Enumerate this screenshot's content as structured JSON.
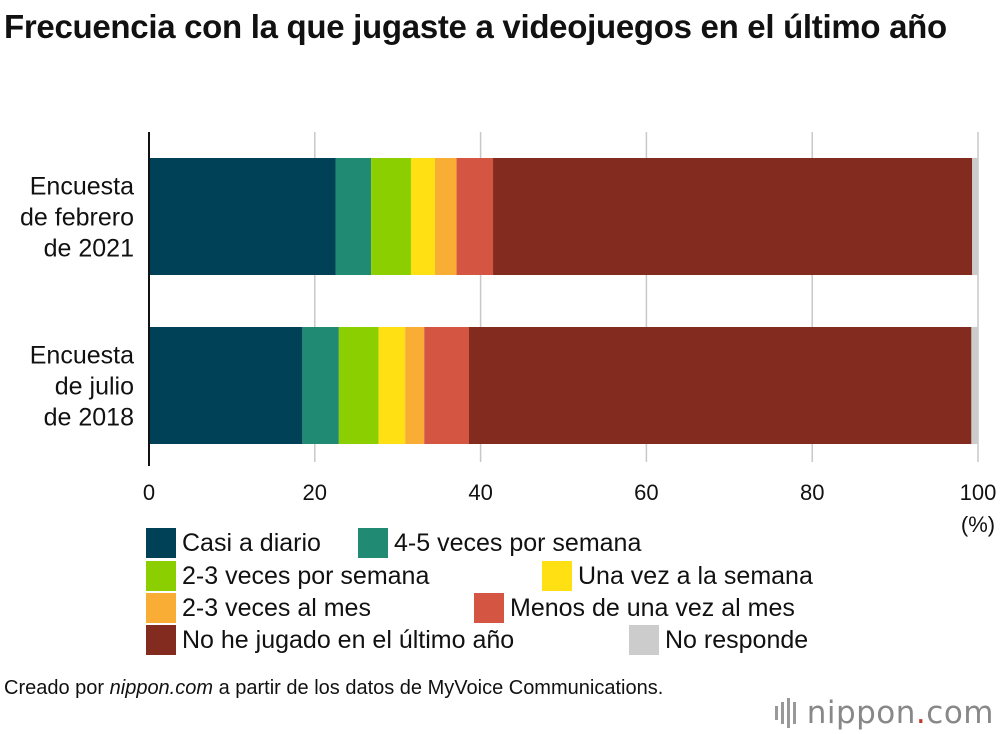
{
  "title": "Frecuencia con la que jugaste a videojuegos en el último año",
  "footer": {
    "prefix": "Creado por ",
    "site": "nippon.com",
    "suffix": " a partir de los datos de MyVoice Communications."
  },
  "logo": {
    "name": "nippon",
    "dot": ".",
    "tld": "com"
  },
  "chart_data": {
    "type": "bar",
    "orientation": "horizontal",
    "stacked": true,
    "categories": [
      "Encuesta de febrero de 2021",
      "Encuesta de julio de 2018"
    ],
    "category_lines": [
      [
        "Encuesta",
        "de febrero",
        "de 2021"
      ],
      [
        "Encuesta",
        "de julio",
        "de 2018"
      ]
    ],
    "series": [
      {
        "name": "Casi a diario",
        "color": "#004158",
        "values": [
          22.5,
          18.5
        ]
      },
      {
        "name": "4-5 veces por semana",
        "color": "#208a72",
        "values": [
          4.3,
          4.4
        ]
      },
      {
        "name": "2-3 veces por semana",
        "color": "#8bcf00",
        "values": [
          4.8,
          4.8
        ]
      },
      {
        "name": "Una vez a la semana",
        "color": "#ffe013",
        "values": [
          2.9,
          3.2
        ]
      },
      {
        "name": "2-3 veces al mes",
        "color": "#f9ad34",
        "values": [
          2.6,
          2.3
        ]
      },
      {
        "name": "Menos de una vez al mes",
        "color": "#d35542",
        "values": [
          4.4,
          5.4
        ]
      },
      {
        "name": "No he jugado en el último año",
        "color": "#822b1e",
        "values": [
          57.8,
          60.6
        ]
      },
      {
        "name": "No responde",
        "color": "#cccccc",
        "values": [
          0.7,
          0.8
        ]
      }
    ],
    "xlim": [
      0,
      100
    ],
    "xticks": [
      0,
      20,
      40,
      60,
      80,
      100
    ],
    "xunit": "(%)",
    "grid": true
  }
}
